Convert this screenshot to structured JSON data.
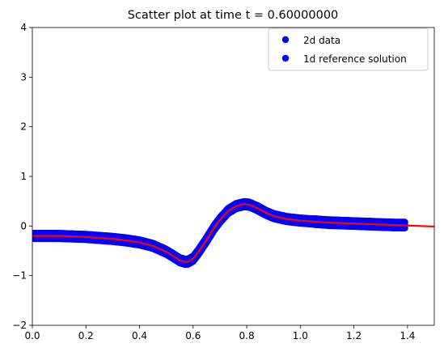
{
  "chart_data": {
    "type": "scatter",
    "title": "Scatter plot at time t =      0.60000000",
    "xlabel": "",
    "ylabel": "",
    "xlim": [
      0.0,
      1.5
    ],
    "ylim": [
      -2,
      4
    ],
    "xticks": [
      "0.0",
      "0.2",
      "0.4",
      "0.6",
      "0.8",
      "1.0",
      "1.2",
      "1.4"
    ],
    "yticks": [
      "−2",
      "−1",
      "0",
      "1",
      "2",
      "3",
      "4"
    ],
    "grid": false,
    "legend_position": "top-right",
    "series": [
      {
        "name": "2d data",
        "kind": "scatter",
        "color": "#0000ff",
        "x": [
          0.0,
          0.05,
          0.1,
          0.15,
          0.2,
          0.25,
          0.3,
          0.35,
          0.4,
          0.45,
          0.5,
          0.53,
          0.55,
          0.57,
          0.58,
          0.6,
          0.62,
          0.65,
          0.68,
          0.7,
          0.73,
          0.76,
          0.79,
          0.81,
          0.84,
          0.87,
          0.9,
          0.95,
          1.0,
          1.05,
          1.1,
          1.15,
          1.2,
          1.25,
          1.3,
          1.35,
          1.39
        ],
        "y": [
          -0.2,
          -0.2,
          -0.2,
          -0.21,
          -0.22,
          -0.24,
          -0.26,
          -0.29,
          -0.33,
          -0.4,
          -0.52,
          -0.62,
          -0.69,
          -0.72,
          -0.72,
          -0.66,
          -0.52,
          -0.28,
          -0.02,
          0.12,
          0.3,
          0.4,
          0.44,
          0.43,
          0.36,
          0.27,
          0.2,
          0.14,
          0.11,
          0.09,
          0.07,
          0.06,
          0.05,
          0.04,
          0.03,
          0.02,
          0.02
        ]
      },
      {
        "name": "1d reference solution",
        "kind": "line",
        "color": "#ff0000",
        "x": [
          0.0,
          0.05,
          0.1,
          0.15,
          0.2,
          0.25,
          0.3,
          0.35,
          0.4,
          0.45,
          0.5,
          0.53,
          0.55,
          0.57,
          0.58,
          0.6,
          0.62,
          0.65,
          0.68,
          0.7,
          0.73,
          0.76,
          0.79,
          0.81,
          0.84,
          0.87,
          0.9,
          0.95,
          1.0,
          1.05,
          1.1,
          1.15,
          1.2,
          1.25,
          1.3,
          1.35,
          1.4,
          1.45,
          1.5
        ],
        "y": [
          -0.2,
          -0.2,
          -0.2,
          -0.21,
          -0.22,
          -0.24,
          -0.26,
          -0.29,
          -0.33,
          -0.4,
          -0.52,
          -0.62,
          -0.69,
          -0.72,
          -0.72,
          -0.66,
          -0.52,
          -0.28,
          -0.02,
          0.12,
          0.3,
          0.4,
          0.44,
          0.43,
          0.36,
          0.27,
          0.2,
          0.14,
          0.11,
          0.09,
          0.07,
          0.06,
          0.05,
          0.04,
          0.03,
          0.02,
          0.01,
          0.0,
          -0.01
        ]
      }
    ],
    "legend": {
      "entries": [
        "2d data",
        "1d reference solution"
      ],
      "marker_color": "#0000ff"
    }
  }
}
